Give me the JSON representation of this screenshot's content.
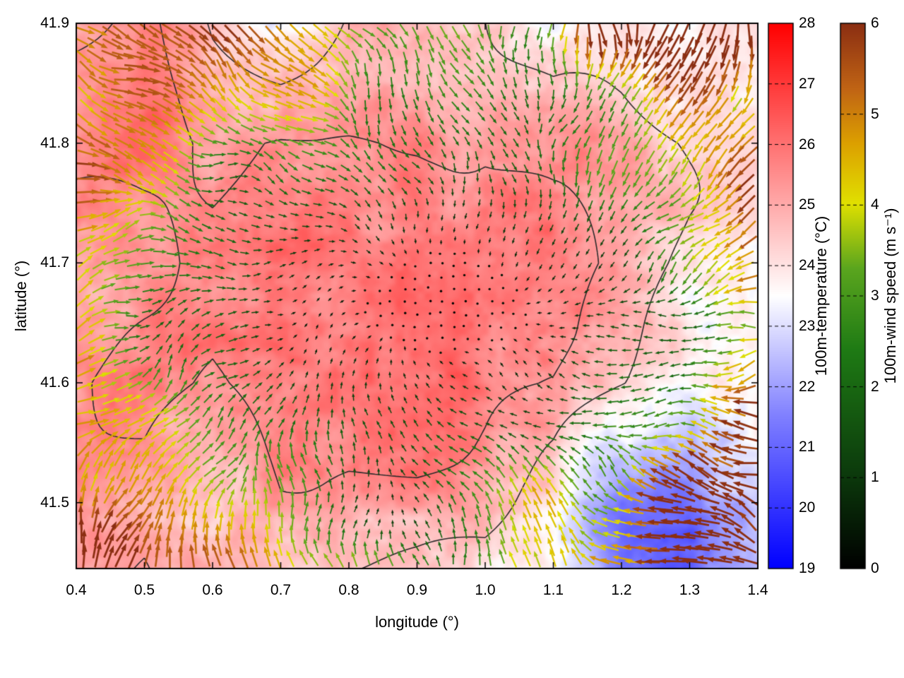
{
  "figure": {
    "background": "#ffffff",
    "frame_color": "#000000"
  },
  "chart_data": {
    "type": "heatmap",
    "subtype": "temperature-field-with-wind-quiver-and-contours",
    "title": "",
    "xlabel": "longitude (°)",
    "ylabel": "latitude (°)",
    "xlim": [
      0.4,
      1.4
    ],
    "ylim": [
      41.445,
      41.9
    ],
    "grid": false,
    "xticks": [
      {
        "value": 0.4,
        "label": "0.4"
      },
      {
        "value": 0.5,
        "label": "0.5"
      },
      {
        "value": 0.6,
        "label": "0.6"
      },
      {
        "value": 0.7,
        "label": "0.7"
      },
      {
        "value": 0.8,
        "label": "0.8"
      },
      {
        "value": 0.9,
        "label": "0.9"
      },
      {
        "value": 1.0,
        "label": "1.0"
      },
      {
        "value": 1.1,
        "label": "1.1"
      },
      {
        "value": 1.2,
        "label": "1.2"
      },
      {
        "value": 1.3,
        "label": "1.3"
      },
      {
        "value": 1.4,
        "label": "1.4"
      }
    ],
    "yticks": [
      {
        "value": 41.5,
        "label": "41.5"
      },
      {
        "value": 41.6,
        "label": "41.6"
      },
      {
        "value": 41.7,
        "label": "41.7"
      },
      {
        "value": 41.8,
        "label": "41.8"
      },
      {
        "value": 41.9,
        "label": "41.9"
      }
    ],
    "contour_levels": [
      24.5,
      25.5
    ],
    "contour_color": "#2b2b2b",
    "colorbars": [
      {
        "id": "temperature",
        "label": "100m-temperature (°C)",
        "min": 19,
        "max": 28,
        "ticks": [
          {
            "value": 19,
            "label": "19"
          },
          {
            "value": 20,
            "label": "20"
          },
          {
            "value": 21,
            "label": "21"
          },
          {
            "value": 22,
            "label": "22"
          },
          {
            "value": 23,
            "label": "23"
          },
          {
            "value": 24,
            "label": "24"
          },
          {
            "value": 25,
            "label": "25"
          },
          {
            "value": 26,
            "label": "26"
          },
          {
            "value": 27,
            "label": "27"
          },
          {
            "value": 28,
            "label": "28"
          }
        ],
        "stops": [
          {
            "t": 0.0,
            "color": "#0000ff"
          },
          {
            "t": 0.28,
            "color": "#8080ff"
          },
          {
            "t": 0.5,
            "color": "#ffffff"
          },
          {
            "t": 0.75,
            "color": "#ff8080"
          },
          {
            "t": 1.0,
            "color": "#ff0000"
          }
        ]
      },
      {
        "id": "wind-speed",
        "label": "100m-wind speed (m s⁻¹)",
        "min": 0,
        "max": 6,
        "ticks": [
          {
            "value": 0,
            "label": "0"
          },
          {
            "value": 1,
            "label": "1"
          },
          {
            "value": 2,
            "label": "2"
          },
          {
            "value": 3,
            "label": "3"
          },
          {
            "value": 4,
            "label": "4"
          },
          {
            "value": 5,
            "label": "5"
          },
          {
            "value": 6,
            "label": "6"
          }
        ],
        "stops": [
          {
            "t": 0.0,
            "color": "#000000"
          },
          {
            "t": 0.18,
            "color": "#0c3c0c"
          },
          {
            "t": 0.4,
            "color": "#1e7a14"
          },
          {
            "t": 0.55,
            "color": "#5aa51e"
          },
          {
            "t": 0.67,
            "color": "#e0e000"
          },
          {
            "t": 0.78,
            "color": "#dca000"
          },
          {
            "t": 0.88,
            "color": "#c06414"
          },
          {
            "t": 1.0,
            "color": "#8b2e12"
          }
        ]
      }
    ],
    "temperature_field": {
      "units": "°C",
      "lon": [
        0.4,
        0.5,
        0.6,
        0.7,
        0.8,
        0.9,
        1.0,
        1.1,
        1.2,
        1.3,
        1.4
      ],
      "lat": [
        41.9,
        41.8,
        41.7,
        41.6,
        41.5,
        41.445
      ],
      "values": [
        [
          25.0,
          25.5,
          24.0,
          23.2,
          24.5,
          25.0,
          24.5,
          23.8,
          24.0,
          23.8,
          24.3
        ],
        [
          26.0,
          25.8,
          25.0,
          25.5,
          25.6,
          25.6,
          25.5,
          25.0,
          24.8,
          24.4,
          24.0
        ],
        [
          25.5,
          25.2,
          25.6,
          26.0,
          26.0,
          26.0,
          25.6,
          25.5,
          25.0,
          24.0,
          23.5
        ],
        [
          25.6,
          26.0,
          25.5,
          26.0,
          26.0,
          26.0,
          25.6,
          25.4,
          24.5,
          23.5,
          24.0
        ],
        [
          25.5,
          25.5,
          25.0,
          25.5,
          25.2,
          25.2,
          25.0,
          24.0,
          21.5,
          21.0,
          23.0
        ],
        [
          25.5,
          26.0,
          25.0,
          24.6,
          24.5,
          24.5,
          24.4,
          23.5,
          21.0,
          20.5,
          22.5
        ]
      ]
    },
    "wind_field": {
      "units": "m s⁻¹",
      "render": "quiver",
      "speed_range": [
        0,
        6
      ],
      "convergence_center": {
        "lon": 0.92,
        "lat": 41.665
      },
      "calm_core_speed": 0.3,
      "edge_speed": 5.5,
      "southeast_flow": {
        "region": "lon > 1.0, lat < 41.58",
        "speed": 6,
        "direction": "toward northwest"
      },
      "swirl_rad": 0.4
    }
  }
}
